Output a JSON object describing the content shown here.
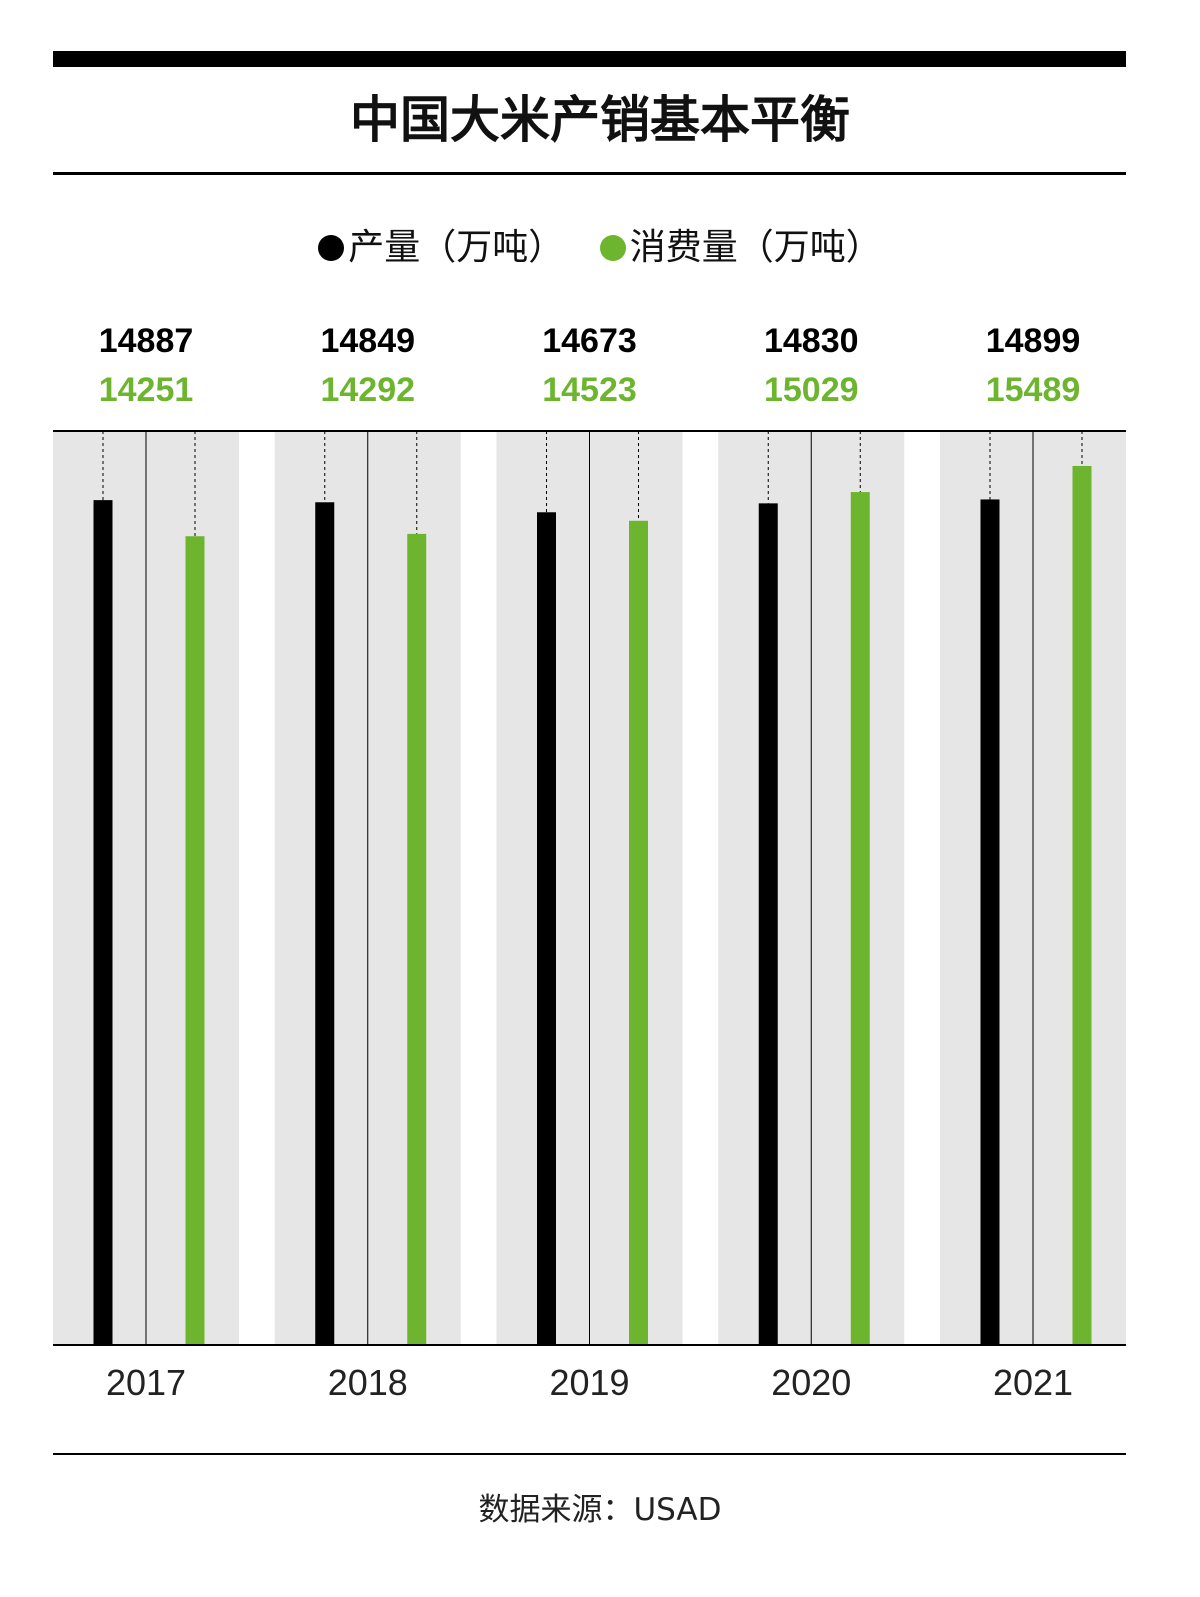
{
  "title": "中国大米产销基本平衡",
  "source": "数据来源：USAD",
  "colors": {
    "production": "#000000",
    "consumption": "#6db52f",
    "band": "#e6e6e6"
  },
  "chart_data": {
    "type": "bar",
    "title": "中国大米产销基本平衡",
    "categories": [
      "2017",
      "2018",
      "2019",
      "2020",
      "2021"
    ],
    "series": [
      {
        "name": "产量（万吨）",
        "values": [
          14887,
          14849,
          14673,
          14830,
          14899
        ]
      },
      {
        "name": "消费量（万吨）",
        "values": [
          14251,
          14292,
          14523,
          15029,
          15489
        ]
      }
    ],
    "legend": "top-center",
    "data_labels": "above",
    "grid": false
  }
}
